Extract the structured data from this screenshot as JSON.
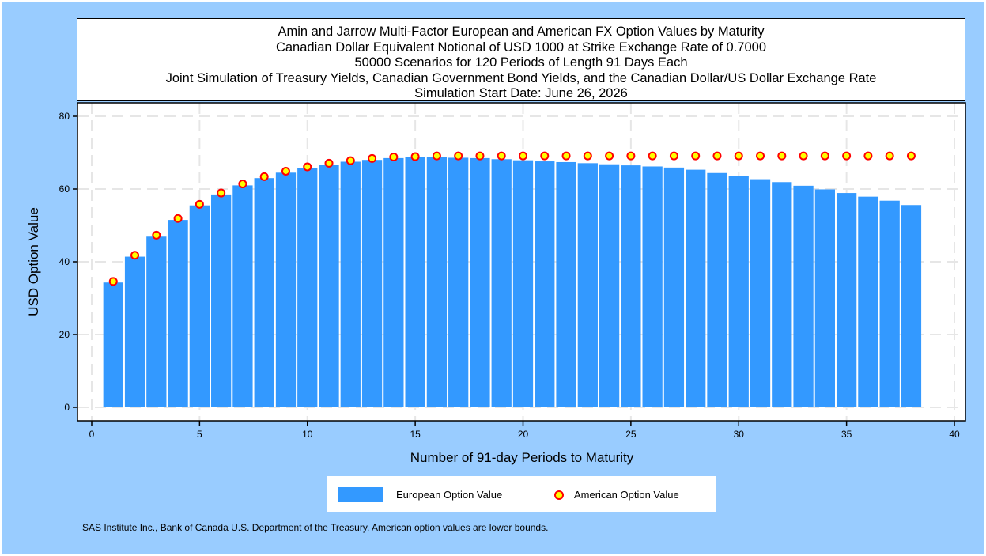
{
  "title_lines": [
    "Amin and Jarrow Multi-Factor European and American FX Option Values by Maturity",
    "Canadian Dollar Equivalent Notional of USD 1000 at Strike Exchange Rate of  0.7000",
    "50000 Scenarios for 120 Periods of Length 91 Days Each",
    "Joint Simulation of Treasury Yields, Canadian Government Bond Yields, and the Canadian Dollar/US Dollar Exchange Rate",
    "Simulation Start Date: June 26, 2026"
  ],
  "legend": {
    "european": "European Option Value",
    "american": "American Option Value"
  },
  "source": "SAS Institute Inc., Bank of Canada U.S. Department of the Treasury. American option values are lower bounds.",
  "colors": {
    "bar": "#3399ff",
    "marker_fill": "#ffff00",
    "marker_edge": "#ff0000",
    "background": "#99ccff"
  },
  "chart_data": {
    "type": "bar",
    "xlabel": "Number of 91-day Periods to Maturity",
    "ylabel": "USD Option Value",
    "xlim": [
      -0.5,
      40.5
    ],
    "ylim": [
      0,
      80
    ],
    "x_ticks": [
      0,
      5,
      10,
      15,
      20,
      25,
      30,
      35,
      40
    ],
    "y_ticks": [
      0,
      20,
      40,
      60,
      80
    ],
    "grid": true,
    "legend_position": "bottom",
    "x": [
      1,
      2,
      3,
      4,
      5,
      6,
      7,
      8,
      9,
      10,
      11,
      12,
      13,
      14,
      15,
      16,
      17,
      18,
      19,
      20,
      21,
      22,
      23,
      24,
      25,
      26,
      27,
      28,
      29,
      30,
      31,
      32,
      33,
      34,
      35,
      36,
      37,
      38
    ],
    "series": [
      {
        "name": "European Option Value",
        "type": "bar",
        "values": [
          34.3,
          41.4,
          46.9,
          51.5,
          55.5,
          58.5,
          61.0,
          63.0,
          64.5,
          65.8,
          66.7,
          67.5,
          68.0,
          68.5,
          68.7,
          68.8,
          68.6,
          68.5,
          68.2,
          67.9,
          67.6,
          67.4,
          67.1,
          66.8,
          66.5,
          66.2,
          65.9,
          65.3,
          64.4,
          63.5,
          62.7,
          61.9,
          60.9,
          59.9,
          58.9,
          57.9,
          56.8,
          55.6
        ]
      },
      {
        "name": "American Option Value",
        "type": "scatter",
        "values": [
          34.6,
          41.8,
          47.3,
          51.9,
          55.8,
          58.9,
          61.4,
          63.4,
          64.9,
          66.1,
          67.1,
          67.8,
          68.4,
          68.8,
          68.9,
          69.1,
          69.1,
          69.1,
          69.1,
          69.1,
          69.1,
          69.1,
          69.1,
          69.1,
          69.1,
          69.1,
          69.1,
          69.1,
          69.1,
          69.1,
          69.1,
          69.1,
          69.1,
          69.1,
          69.1,
          69.1,
          69.1,
          69.1
        ]
      }
    ]
  }
}
